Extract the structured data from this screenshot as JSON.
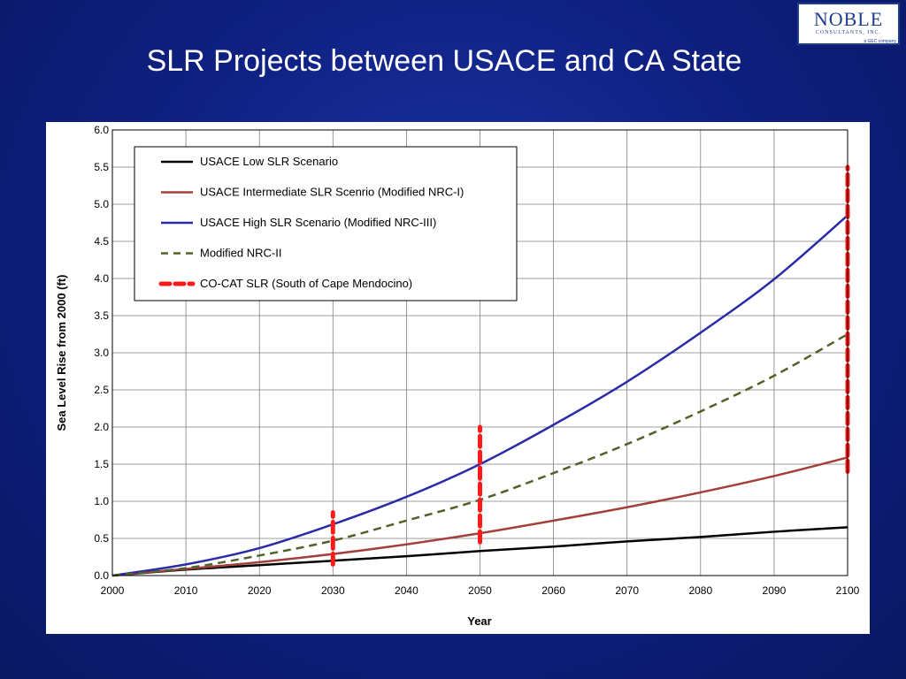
{
  "slide": {
    "title": "SLR Projects between USACE and CA State",
    "logo": {
      "name": "NOBLE",
      "subtitle": "CONSULTANTS, INC.",
      "tagline": "a GEC company"
    }
  },
  "chart_data": {
    "type": "line",
    "title": "",
    "xlabel": "Year",
    "ylabel": "Sea Level Rise from 2000 (ft)",
    "xlim": [
      2000,
      2100
    ],
    "ylim": [
      0,
      6
    ],
    "grid": true,
    "legend_position": "top-left",
    "x_ticks": [
      "2000",
      "2010",
      "2020",
      "2030",
      "2040",
      "2050",
      "2060",
      "2070",
      "2080",
      "2090",
      "2100"
    ],
    "y_ticks": [
      "0.0",
      "0.5",
      "1.0",
      "1.5",
      "2.0",
      "2.5",
      "3.0",
      "3.5",
      "4.0",
      "4.5",
      "5.0",
      "5.5",
      "6.0"
    ],
    "series": [
      {
        "name": "USACE Low SLR Scenario",
        "color": "#000000",
        "style": "solid",
        "x": [
          2000,
          2010,
          2020,
          2030,
          2040,
          2050,
          2060,
          2070,
          2080,
          2090,
          2100
        ],
        "y": [
          0,
          0.08,
          0.14,
          0.2,
          0.26,
          0.33,
          0.39,
          0.46,
          0.52,
          0.59,
          0.65
        ]
      },
      {
        "name": "USACE Intermediate SLR Scenrio (Modified NRC-I)",
        "color": "#a3403a",
        "style": "solid",
        "x": [
          2000,
          2010,
          2020,
          2030,
          2040,
          2050,
          2060,
          2070,
          2080,
          2090,
          2100
        ],
        "y": [
          0,
          0.09,
          0.18,
          0.29,
          0.42,
          0.57,
          0.74,
          0.92,
          1.12,
          1.34,
          1.59
        ]
      },
      {
        "name": "USACE High SLR Scenario (Modified NRC-III)",
        "color": "#2b2ba8",
        "style": "solid",
        "x": [
          2000,
          2010,
          2020,
          2030,
          2040,
          2050,
          2060,
          2070,
          2080,
          2090,
          2100
        ],
        "y": [
          0,
          0.15,
          0.37,
          0.69,
          1.06,
          1.5,
          2.03,
          2.61,
          3.27,
          3.99,
          4.85
        ]
      },
      {
        "name": "Modified NRC-II",
        "color": "#4f6228",
        "style": "dashed",
        "x": [
          2000,
          2010,
          2020,
          2030,
          2040,
          2050,
          2060,
          2070,
          2080,
          2090,
          2100
        ],
        "y": [
          0,
          0.1,
          0.27,
          0.47,
          0.74,
          1.02,
          1.38,
          1.77,
          2.21,
          2.69,
          3.25
        ]
      },
      {
        "name": "CO-CAT SLR (South of Cape Mendocino)",
        "color": "#ff1a1a",
        "style": "thick-dashed",
        "ranges": [
          {
            "x": 2030,
            "low": 0.15,
            "high": 0.85
          },
          {
            "x": 2050,
            "low": 0.45,
            "high": 2.0
          },
          {
            "x": 2100,
            "low": 1.4,
            "high": 5.5
          }
        ]
      }
    ]
  }
}
